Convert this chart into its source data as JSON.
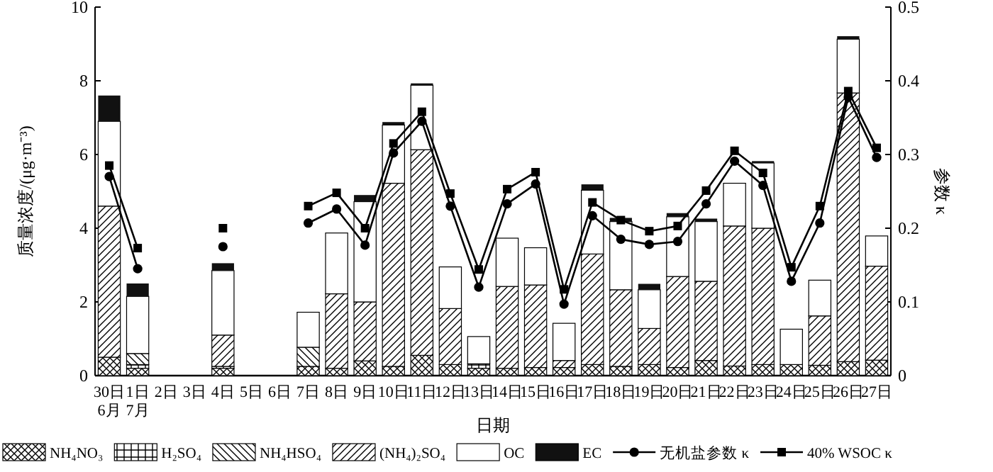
{
  "chart_data": {
    "type": "bar",
    "stacked": true,
    "xlabel": "日期",
    "ylabel": "质量浓度/(μg·m⁻³)",
    "y2label": "参数 κ",
    "legend": "bottom",
    "categories": [
      "30日\n6月",
      "1日\n7月",
      "2日",
      "3日",
      "4日",
      "5日",
      "6日",
      "7日",
      "8日",
      "9日",
      "10日",
      "11日",
      "12日",
      "13日",
      "14日",
      "15日",
      "16日",
      "17日",
      "18日",
      "19日",
      "20日",
      "21日",
      "22日",
      "23日",
      "24日",
      "25日",
      "26日",
      "27日"
    ],
    "ylim": [
      0,
      10
    ],
    "yticks": [
      0,
      2,
      4,
      6,
      8,
      10
    ],
    "y2lim": [
      0,
      0.5
    ],
    "y2ticks": [
      0,
      0.1,
      0.2,
      0.3,
      0.4,
      0.5
    ],
    "series": [
      {
        "name": "NH₄NO₃",
        "color": "#000000",
        "values": [
          0.5,
          0.2,
          null,
          null,
          0.2,
          null,
          null,
          0.25,
          0.2,
          0.4,
          0.25,
          0.55,
          0.3,
          0.2,
          0.2,
          0.22,
          0.22,
          0.3,
          0.25,
          0.3,
          0.22,
          0.41,
          0.26,
          0.3,
          0.3,
          0.28,
          0.38,
          0.42
        ]
      },
      {
        "name": "H₂SO₄",
        "color": "#000000",
        "values": [
          0,
          0.1,
          null,
          null,
          0.05,
          null,
          null,
          0,
          0,
          0,
          0,
          0,
          0,
          0.12,
          0,
          0,
          0,
          0,
          0,
          0,
          0,
          0,
          0,
          0,
          0,
          0,
          0,
          0
        ]
      },
      {
        "name": "NH₄HSO₄",
        "color": "#000000",
        "values": [
          0,
          0.3,
          null,
          null,
          0,
          null,
          null,
          0.52,
          0,
          0,
          0,
          0,
          0,
          0,
          0,
          0,
          0,
          0,
          0,
          0,
          0,
          0,
          0,
          0,
          0,
          0,
          0,
          0
        ]
      },
      {
        "name": "(NH₄)₂SO₄",
        "color": "#000000",
        "values": [
          4.1,
          0,
          null,
          null,
          0.85,
          null,
          null,
          0,
          2.02,
          1.6,
          4.97,
          5.58,
          1.52,
          0,
          2.22,
          2.24,
          0.19,
          3.0,
          2.08,
          0.98,
          2.47,
          2.15,
          3.8,
          3.7,
          0,
          1.34,
          7.29,
          2.55
        ]
      },
      {
        "name": "OC",
        "color": "#ffffff",
        "values": [
          2.3,
          1.55,
          null,
          null,
          1.75,
          null,
          null,
          0.95,
          1.65,
          2.72,
          1.58,
          1.75,
          1.13,
          0.74,
          1.31,
          1.01,
          1.01,
          1.73,
          1.85,
          1.05,
          1.62,
          1.62,
          1.16,
          1.77,
          0.96,
          0.97,
          1.46,
          0.82
        ]
      },
      {
        "name": "EC",
        "color": "#111111",
        "values": [
          0.7,
          0.35,
          null,
          null,
          0.2,
          null,
          null,
          0,
          0,
          0.18,
          0.08,
          0.05,
          0,
          0,
          0,
          0,
          0,
          0.16,
          0.1,
          0.16,
          0.1,
          0.08,
          0,
          0.05,
          0,
          0,
          0.08,
          0
        ]
      },
      {
        "name": "无机盐参数 κ",
        "type": "line",
        "axis": "y2",
        "marker": "circle",
        "color": "#000000",
        "values": [
          0.27,
          0.145,
          null,
          null,
          0.175,
          null,
          null,
          0.207,
          0.226,
          0.177,
          0.302,
          0.345,
          0.23,
          0.12,
          0.233,
          0.26,
          0.097,
          0.217,
          0.185,
          0.178,
          0.182,
          0.233,
          0.291,
          0.258,
          0.128,
          0.207,
          0.378,
          0.296
        ]
      },
      {
        "name": "40% WSOC κ",
        "type": "line",
        "axis": "y2",
        "marker": "square",
        "color": "#000000",
        "values": [
          0.285,
          0.173,
          null,
          null,
          0.2,
          null,
          null,
          0.23,
          0.248,
          0.2,
          0.315,
          0.358,
          0.247,
          0.144,
          0.253,
          0.276,
          0.117,
          0.235,
          0.211,
          0.196,
          0.203,
          0.251,
          0.305,
          0.275,
          0.147,
          0.23,
          0.386,
          0.309
        ]
      }
    ]
  }
}
